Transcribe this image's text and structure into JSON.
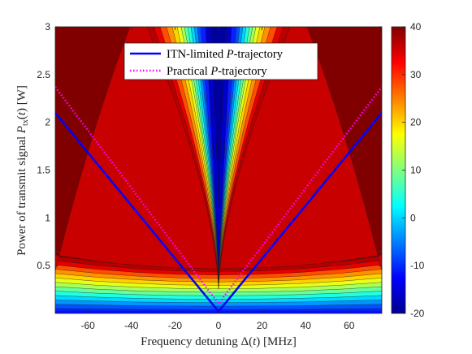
{
  "chart_data": {
    "type": "heatmap",
    "title": "",
    "xlabel": "Frequency detuning Δ(t) [MHz]",
    "ylabel": "Power of transmit signal P_tx(t) [W]",
    "xlim": [
      -75,
      75
    ],
    "ylim": [
      0,
      3
    ],
    "x_ticks": [
      "-60",
      "-40",
      "-20",
      "0",
      "20",
      "40",
      "60"
    ],
    "y_ticks": [
      "0.5",
      "1",
      "1.5",
      "2",
      "2.5",
      "3"
    ],
    "x_tick_values": [
      -60,
      -40,
      -20,
      0,
      20,
      40,
      60
    ],
    "y_tick_values": [
      0.5,
      1,
      1.5,
      2,
      2.5,
      3
    ],
    "colorbar": {
      "range": [
        -20,
        40
      ],
      "ticks": [
        "40",
        "30",
        "20",
        "10",
        "0",
        "-10",
        "-20"
      ],
      "tick_values": [
        40,
        30,
        20,
        10,
        0,
        -10,
        -20
      ],
      "colormap": "jet"
    },
    "legend_position": "top-center",
    "grid": false,
    "series": [
      {
        "name": "ITN-limited P-trajectory",
        "color": "#0000ff",
        "style": "solid",
        "x": [
          -75,
          0,
          75
        ],
        "y": [
          2.1,
          0.02,
          2.1
        ]
      },
      {
        "name": "Practical P-trajectory",
        "color": "#ff00ff",
        "style": "dotted",
        "x": [
          -75,
          0,
          75
        ],
        "y": [
          2.37,
          0.1,
          2.37
        ]
      }
    ]
  },
  "legend": {
    "items": [
      {
        "prefix": "ITN-limited ",
        "italic": "P",
        "suffix": "-trajectory"
      },
      {
        "prefix": "Practical ",
        "italic": "P",
        "suffix": "-trajectory"
      }
    ]
  },
  "axis_labels": {
    "x_prefix": "Frequency detuning Δ(",
    "x_var": "t",
    "x_suffix": ") [MHz]",
    "y_prefix": "Power of transmit signal ",
    "y_var": "P",
    "y_sub": "tx",
    "y_open": "(",
    "y_var2": "t",
    "y_suffix": ") [W]"
  }
}
